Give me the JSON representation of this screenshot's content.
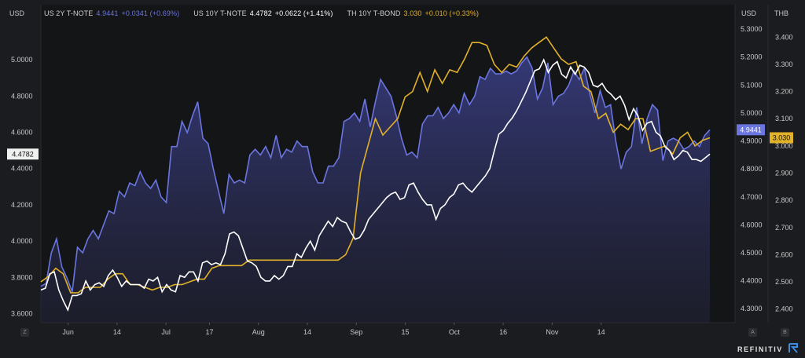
{
  "legend": [
    {
      "name": "US 2Y T-NOTE",
      "value": "4.9441",
      "change": "+0.0341 (+0.69%)",
      "color": "#6a75e0"
    },
    {
      "name": "US 10Y T-NOTE",
      "value": "4.4782",
      "change": "+0.0622 (+1.41%)",
      "color": "#ffffff"
    },
    {
      "name": "TH 10Y T-BOND",
      "value": "3.030",
      "change": "+0.010 (+0.33%)",
      "color": "#e2b12a"
    }
  ],
  "axis_units": {
    "left": "USD",
    "right_usd": "USD",
    "right_thb": "THB"
  },
  "corner_buttons": {
    "left": "Z",
    "right_a": "A",
    "right_b": "B"
  },
  "brand": "REFINITIV",
  "chart_data": {
    "type": "line",
    "left_axis": {
      "unit": "USD",
      "ticks": [
        "3.6000",
        "3.8000",
        "4.0000",
        "4.2000",
        "4.4000",
        "4.6000",
        "4.8000",
        "5.0000"
      ],
      "range": [
        3.55,
        5.2
      ]
    },
    "right_usd_axis": {
      "unit": "USD",
      "ticks": [
        "4.3000",
        "4.4000",
        "4.5000",
        "4.6000",
        "4.7000",
        "4.8000",
        "4.9000",
        "5.0000",
        "5.1000",
        "5.2000",
        "5.3000"
      ],
      "range": [
        4.25,
        5.32
      ]
    },
    "right_thb_axis": {
      "unit": "THB",
      "ticks": [
        "2.400",
        "2.500",
        "2.600",
        "2.700",
        "2.800",
        "2.900",
        "3.000",
        "3.100",
        "3.200",
        "3.300",
        "3.400"
      ],
      "range": [
        2.35,
        3.45
      ]
    },
    "x_ticks": [
      "Jun",
      "14",
      "Jul",
      "17",
      "Aug",
      "14",
      "Sep",
      "15",
      "Oct",
      "16",
      "Nov",
      "14"
    ],
    "x_tick_index": [
      5,
      14,
      23,
      31,
      40,
      49,
      58,
      67,
      76,
      85,
      94,
      103
    ],
    "last_value_labels": {
      "us10y": "4.4782",
      "us2y": "4.9441",
      "th10y": "3.030"
    },
    "series": [
      {
        "name": "US 2Y T-NOTE",
        "color": "#6a75e0",
        "axis": "right_usd",
        "filled": true,
        "values": [
          4.38,
          4.39,
          4.5,
          4.55,
          4.45,
          4.41,
          4.36,
          4.52,
          4.5,
          4.55,
          4.58,
          4.55,
          4.6,
          4.65,
          4.64,
          4.72,
          4.7,
          4.75,
          4.74,
          4.79,
          4.75,
          4.73,
          4.76,
          4.7,
          4.68,
          4.88,
          4.88,
          4.97,
          4.93,
          4.99,
          5.04,
          4.91,
          4.89,
          4.8,
          4.72,
          4.64,
          4.78,
          4.75,
          4.76,
          4.75,
          4.85,
          4.87,
          4.85,
          4.88,
          4.84,
          4.92,
          4.84,
          4.87,
          4.86,
          4.9,
          4.88,
          4.88,
          4.79,
          4.75,
          4.75,
          4.81,
          4.81,
          4.84,
          4.97,
          4.98,
          5.0,
          4.97,
          5.05,
          4.95,
          5.04,
          5.12,
          5.09,
          5.06,
          4.99,
          4.91,
          4.85,
          4.86,
          4.84,
          4.96,
          4.99,
          4.99,
          5.02,
          4.98,
          5.0,
          5.03,
          5.0,
          5.07,
          5.03,
          5.06,
          5.13,
          5.12,
          5.16,
          5.14,
          5.14,
          5.15,
          5.14,
          5.15,
          5.18,
          5.2,
          5.16,
          5.05,
          5.09,
          5.18,
          5.03,
          5.06,
          5.07,
          5.1,
          5.15,
          5.12,
          5.16,
          5.07,
          5.0,
          5.08,
          5.02,
          5.03,
          4.9,
          4.8,
          4.86,
          4.88,
          5.02,
          4.89,
          4.98,
          5.03,
          5.01,
          4.83,
          4.9,
          4.91,
          4.9,
          4.87,
          4.88,
          4.9,
          4.88,
          4.92,
          4.94
        ]
      },
      {
        "name": "US 10Y T-NOTE",
        "color": "#ffffff",
        "axis": "left",
        "filled": false,
        "values": [
          3.73,
          3.74,
          3.82,
          3.83,
          3.73,
          3.67,
          3.62,
          3.7,
          3.7,
          3.71,
          3.78,
          3.73,
          3.76,
          3.77,
          3.75,
          3.81,
          3.84,
          3.8,
          3.75,
          3.78,
          3.76,
          3.76,
          3.76,
          3.74,
          3.79,
          3.78,
          3.8,
          3.72,
          3.76,
          3.73,
          3.72,
          3.81,
          3.8,
          3.83,
          3.83,
          3.78,
          3.88,
          3.89,
          3.87,
          3.88,
          3.87,
          3.93,
          4.04,
          4.05,
          4.03,
          3.96,
          3.89,
          3.88,
          3.86,
          3.8,
          3.78,
          3.78,
          3.81,
          3.79,
          3.81,
          3.86,
          3.86,
          3.93,
          3.91,
          3.96,
          4.0,
          3.95,
          4.03,
          4.07,
          4.11,
          4.08,
          4.13,
          4.11,
          4.1,
          4.05,
          4.01,
          4.02,
          4.06,
          4.12,
          4.15,
          4.18,
          4.21,
          4.24,
          4.26,
          4.27,
          4.23,
          4.24,
          4.31,
          4.32,
          4.27,
          4.23,
          4.2,
          4.2,
          4.12,
          4.18,
          4.2,
          4.24,
          4.26,
          4.31,
          4.32,
          4.29,
          4.27,
          4.3,
          4.33,
          4.36,
          4.4,
          4.5,
          4.59,
          4.61,
          4.65,
          4.68,
          4.72,
          4.77,
          4.82,
          4.88,
          4.94,
          4.95,
          5.0,
          4.93,
          4.97,
          4.99,
          4.92,
          4.9,
          4.96,
          4.92,
          4.97,
          4.96,
          4.93,
          4.86,
          4.85,
          4.87,
          4.83,
          4.81,
          4.78,
          4.8,
          4.75,
          4.67,
          4.73,
          4.69,
          4.61,
          4.65,
          4.66,
          4.6,
          4.58,
          4.52,
          4.5,
          4.45,
          4.47,
          4.5,
          4.49,
          4.45,
          4.45,
          4.44,
          4.46,
          4.48
        ]
      },
      {
        "name": "TH 10Y T-BOND",
        "color": "#e2b12a",
        "axis": "right_thb",
        "filled": false,
        "values": [
          2.5,
          2.52,
          2.55,
          2.53,
          2.46,
          2.46,
          2.48,
          2.48,
          2.48,
          2.51,
          2.53,
          2.53,
          2.49,
          2.49,
          2.48,
          2.47,
          2.48,
          2.48,
          2.49,
          2.49,
          2.5,
          2.51,
          2.51,
          2.55,
          2.56,
          2.56,
          2.56,
          2.56,
          2.58,
          2.58,
          2.58,
          2.58,
          2.58,
          2.58,
          2.58,
          2.58,
          2.58,
          2.58,
          2.58,
          2.58,
          2.58,
          2.6,
          2.66,
          2.9,
          3.0,
          3.1,
          3.04,
          3.07,
          3.1,
          3.18,
          3.2,
          3.27,
          3.2,
          3.28,
          3.23,
          3.28,
          3.27,
          3.32,
          3.38,
          3.38,
          3.37,
          3.3,
          3.27,
          3.3,
          3.29,
          3.33,
          3.36,
          3.38,
          3.4,
          3.36,
          3.32,
          3.3,
          3.31,
          3.22,
          3.2,
          3.1,
          3.12,
          3.05,
          3.08,
          3.06,
          3.1,
          3.1,
          2.98,
          2.99,
          3.0,
          2.97,
          3.03,
          3.05,
          3.0,
          3.02,
          3.03
        ]
      }
    ]
  }
}
